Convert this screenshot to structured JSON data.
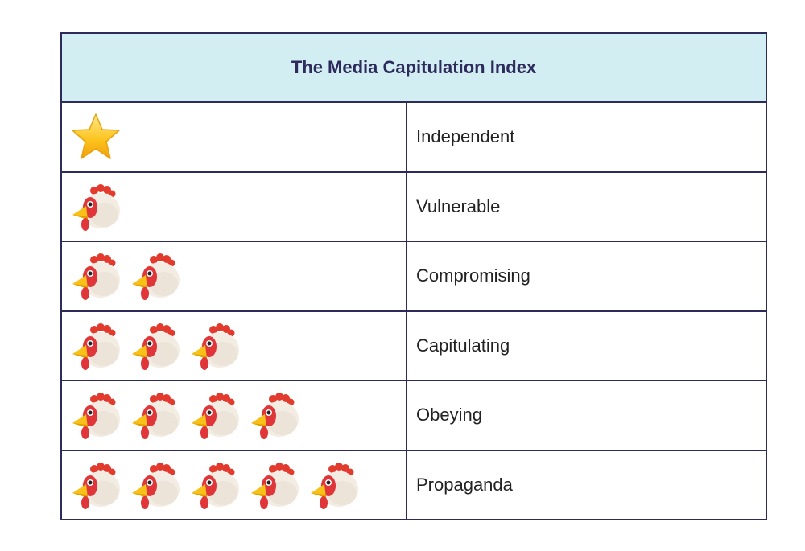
{
  "table": {
    "title": "The Media Capitulation Index",
    "rows": [
      {
        "icon": "star",
        "count": 1,
        "label": "Independent"
      },
      {
        "icon": "chicken",
        "count": 1,
        "label": "Vulnerable"
      },
      {
        "icon": "chicken",
        "count": 2,
        "label": "Compromising"
      },
      {
        "icon": "chicken",
        "count": 3,
        "label": "Capitulating"
      },
      {
        "icon": "chicken",
        "count": 4,
        "label": "Obeying"
      },
      {
        "icon": "chicken",
        "count": 5,
        "label": "Propaganda"
      }
    ]
  }
}
